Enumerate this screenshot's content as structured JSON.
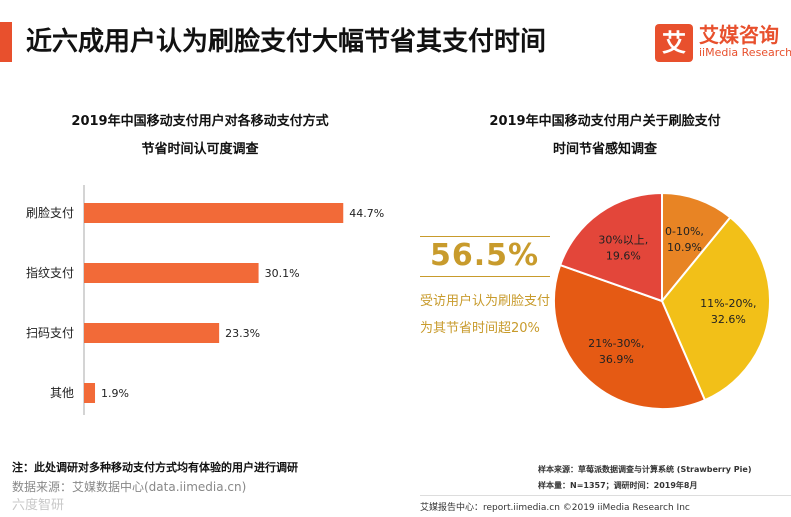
{
  "header": {
    "title": "近六成用户认为刷脸支付大幅节省其支付时间",
    "logo_mark": "艾",
    "logo_cn": "艾媒咨询",
    "logo_en": "iiMedia Research"
  },
  "left_chart": {
    "title_line1": "2019年中国移动支付用户对各移动支付方式",
    "title_line2": "节省时间认可度调查"
  },
  "right_chart": {
    "title_line1": "2019年中国移动支付用户关于刷脸支付",
    "title_line2": "时间节省感知调查"
  },
  "highlight": {
    "value": "56.5%",
    "description": "受访用户认为刷脸支付为其节省时间超20%"
  },
  "chart_data": [
    {
      "type": "bar",
      "orientation": "horizontal",
      "title": "2019年中国移动支付用户对各移动支付方式节省时间认可度调查",
      "categories": [
        "刷脸支付",
        "指纹支付",
        "扫码支付",
        "其他"
      ],
      "values": [
        44.7,
        30.1,
        23.3,
        1.9
      ],
      "value_labels": [
        "44.7%",
        "30.1%",
        "23.3%",
        "1.9%"
      ],
      "unit": "%",
      "xlim": [
        0,
        50
      ],
      "color": "#f26a38"
    },
    {
      "type": "pie",
      "title": "2019年中国移动支付用户关于刷脸支付时间节省感知调查",
      "labels": [
        "0-10%",
        "11%-20%",
        "21%-30%",
        "30%以上"
      ],
      "values": [
        10.9,
        32.6,
        36.9,
        19.6
      ],
      "value_labels": [
        "10.9%",
        "32.6%",
        "36.9%",
        "19.6%"
      ],
      "colors": [
        "#e88424",
        "#f2c018",
        "#e55a14",
        "#e3463a"
      ]
    }
  ],
  "footnotes": {
    "note": "注：此处调研对多种移动支付方式均有体验的用户进行调研",
    "source_left": "数据来源：艾媒数据中心(data.iimedia.cn)",
    "watermark": "六度智研",
    "sample_source": "样本来源：草莓派数据调查与计算系统 (Strawberry Pie)",
    "sample_size": "样本量：N=1357；调研时间：2019年8月",
    "footer": "艾媒报告中心：report.iimedia.cn ©2019  iiMedia Research Inc"
  }
}
